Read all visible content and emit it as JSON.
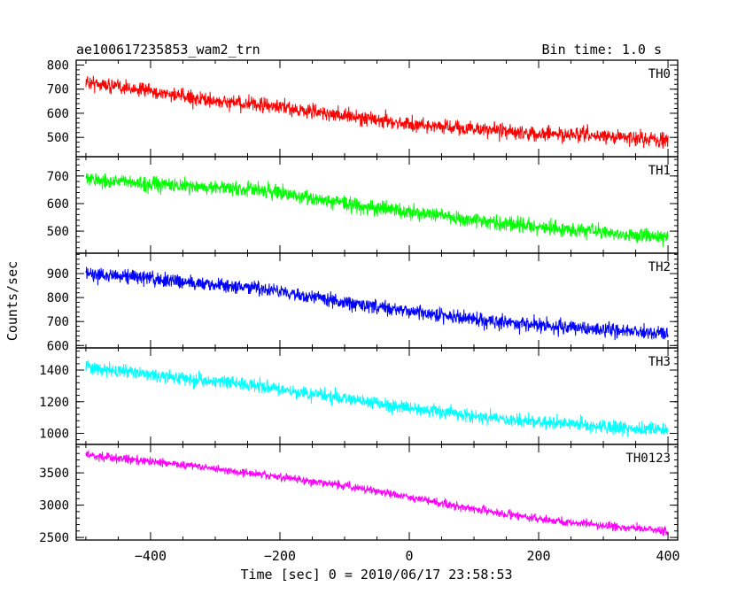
{
  "chart_data": {
    "type": "line",
    "title": "ae100617235853_wam2_trn",
    "bin_time": "Bin time: 1.0 s",
    "xlabel": "Time [sec] 0 = 2010/06/17 23:58:53",
    "ylabel": "Counts/sec",
    "xlim": [
      -515,
      415
    ],
    "x_range": [
      -500,
      400
    ],
    "x_ticks": [
      -400,
      -200,
      0,
      200,
      400
    ],
    "panels": [
      {
        "name": "TH0",
        "color": "#ff0000",
        "ylim": [
          420,
          820
        ],
        "y_ticks": [
          500,
          600,
          700,
          800
        ],
        "trend": [
          [
            -500,
            730
          ],
          [
            -400,
            690
          ],
          [
            -300,
            650
          ],
          [
            -200,
            625
          ],
          [
            -100,
            590
          ],
          [
            0,
            555
          ],
          [
            100,
            535
          ],
          [
            200,
            515
          ],
          [
            300,
            505
          ],
          [
            400,
            490
          ]
        ],
        "noise": 28
      },
      {
        "name": "TH1",
        "color": "#00ff00",
        "ylim": [
          420,
          770
        ],
        "y_ticks": [
          500,
          600,
          700
        ],
        "trend": [
          [
            -500,
            690
          ],
          [
            -400,
            670
          ],
          [
            -300,
            660
          ],
          [
            -200,
            640
          ],
          [
            -100,
            600
          ],
          [
            0,
            570
          ],
          [
            100,
            540
          ],
          [
            200,
            515
          ],
          [
            300,
            495
          ],
          [
            400,
            480
          ]
        ],
        "noise": 25
      },
      {
        "name": "TH2",
        "color": "#0000ff",
        "ylim": [
          590,
          985
        ],
        "y_ticks": [
          600,
          700,
          800,
          900
        ],
        "trend": [
          [
            -500,
            900
          ],
          [
            -400,
            880
          ],
          [
            -300,
            855
          ],
          [
            -200,
            825
          ],
          [
            -100,
            780
          ],
          [
            0,
            745
          ],
          [
            100,
            710
          ],
          [
            200,
            685
          ],
          [
            300,
            665
          ],
          [
            400,
            650
          ]
        ],
        "noise": 28
      },
      {
        "name": "TH3",
        "color": "#00ffff",
        "ylim": [
          930,
          1540
        ],
        "y_ticks": [
          1000,
          1200,
          1400
        ],
        "trend": [
          [
            -500,
            1420
          ],
          [
            -400,
            1370
          ],
          [
            -300,
            1330
          ],
          [
            -200,
            1280
          ],
          [
            -100,
            1220
          ],
          [
            0,
            1160
          ],
          [
            100,
            1110
          ],
          [
            200,
            1070
          ],
          [
            300,
            1040
          ],
          [
            400,
            1020
          ]
        ],
        "noise": 40
      },
      {
        "name": "TH0123",
        "color": "#ff00ff",
        "ylim": [
          2460,
          3940
        ],
        "y_ticks": [
          2500,
          3000,
          3500
        ],
        "trend": [
          [
            -500,
            3780
          ],
          [
            -400,
            3680
          ],
          [
            -300,
            3560
          ],
          [
            -200,
            3440
          ],
          [
            -100,
            3300
          ],
          [
            0,
            3120
          ],
          [
            100,
            2940
          ],
          [
            200,
            2790
          ],
          [
            300,
            2680
          ],
          [
            400,
            2600
          ]
        ],
        "noise": 60
      }
    ]
  }
}
